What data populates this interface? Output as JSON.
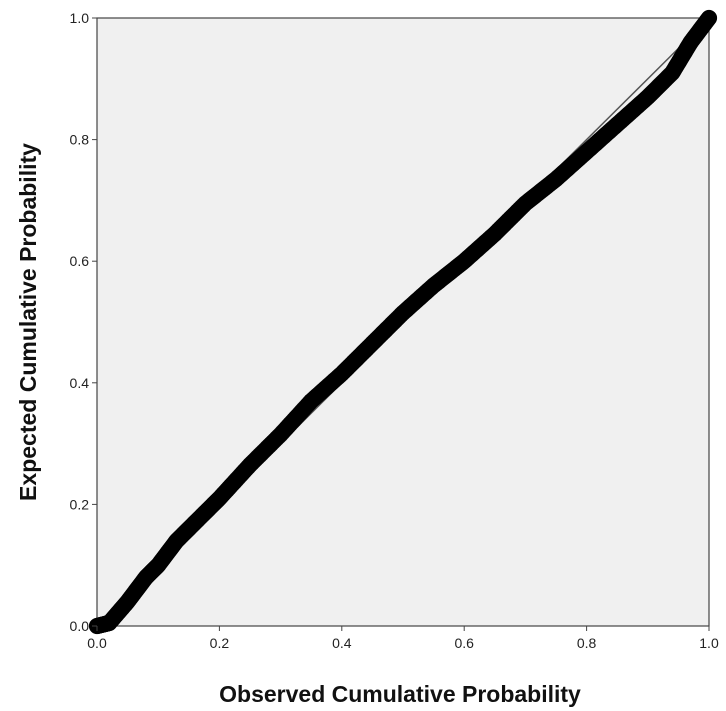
{
  "chart_data": {
    "type": "scatter",
    "xlabel": "Observed Cumulative Probability",
    "ylabel": "Expected Cumulative Probability",
    "xlim": [
      0.0,
      1.0
    ],
    "ylim": [
      0.0,
      1.0
    ],
    "x_ticks": [
      "0.0",
      "0.2",
      "0.4",
      "0.6",
      "0.8",
      "1.0"
    ],
    "y_ticks": [
      "0.0",
      "0.2",
      "0.4",
      "0.6",
      "0.8",
      "1.0"
    ],
    "grid": false,
    "plot_background": "#f0f0f0",
    "marker_color": "#000000",
    "reference_line": {
      "from": [
        0.0,
        0.0
      ],
      "to": [
        1.0,
        1.0
      ],
      "color": "#555555"
    },
    "points": [
      [
        0.0,
        0.0
      ],
      [
        0.02,
        0.005
      ],
      [
        0.05,
        0.04
      ],
      [
        0.08,
        0.08
      ],
      [
        0.1,
        0.1
      ],
      [
        0.13,
        0.14
      ],
      [
        0.16,
        0.17
      ],
      [
        0.2,
        0.21
      ],
      [
        0.25,
        0.265
      ],
      [
        0.3,
        0.315
      ],
      [
        0.35,
        0.37
      ],
      [
        0.4,
        0.415
      ],
      [
        0.45,
        0.465
      ],
      [
        0.5,
        0.515
      ],
      [
        0.55,
        0.56
      ],
      [
        0.6,
        0.6
      ],
      [
        0.65,
        0.645
      ],
      [
        0.7,
        0.695
      ],
      [
        0.75,
        0.735
      ],
      [
        0.8,
        0.78
      ],
      [
        0.85,
        0.825
      ],
      [
        0.9,
        0.87
      ],
      [
        0.94,
        0.91
      ],
      [
        0.97,
        0.96
      ],
      [
        1.0,
        1.0
      ]
    ]
  }
}
